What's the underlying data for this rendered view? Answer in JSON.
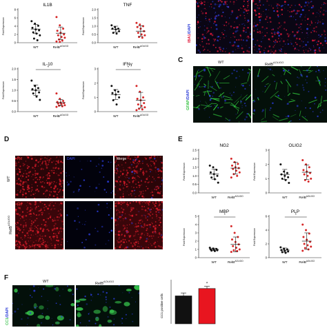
{
  "panels": {
    "c": "C",
    "d": "D",
    "e": "E",
    "f": "F"
  },
  "colors": {
    "wt": "#111111",
    "relb": "#d62728",
    "iba1": "#e0183a",
    "dapi": "#2b3bd6",
    "gfap": "#2fbf3a",
    "fm": "#d81c2a",
    "cc1": "#36c14a"
  },
  "groups": {
    "wt": "WT",
    "relb": "RelB",
    "relb_sup": "ΔOLIGO"
  },
  "ylabel_fold": "Fold Expression",
  "panel_a_stain": {
    "part1": "IBA1",
    "part2": "/DAPI"
  },
  "panel_c": {
    "wt": "WT",
    "relb": "RelB",
    "relb_sup": "ΔOLIGO",
    "stain1": "GFAP",
    "stain2": "/DAPI"
  },
  "panel_d": {
    "col1": "FM",
    "col2": "DAPI",
    "col3": "Merge",
    "row1": "WT",
    "row2": "RelB",
    "row2_sup": "ΔOLIGO"
  },
  "panel_f": {
    "wt": "WT",
    "relb": "RelB",
    "relb_sup": "ΔOLIGO",
    "stain1": "CC1",
    "stain2": "/DAPI",
    "ylabel": "CC1 positive cells",
    "star": "*"
  },
  "chart_data": [
    {
      "type": "scatter",
      "title": "IL1B",
      "ylim": [
        0,
        8
      ],
      "yticks": [
        0,
        2,
        4,
        6,
        8
      ],
      "wt": [
        5.2,
        4.6,
        4.1,
        3.6,
        3.2,
        3.0,
        2.5,
        2.2,
        1.8,
        1.0,
        0.6
      ],
      "relb": [
        6.2,
        4.2,
        3.4,
        2.9,
        2.4,
        2.0,
        1.8,
        1.4,
        1.2,
        0.8,
        0.5,
        0.3,
        0.2
      ],
      "wt_mean": 3.3,
      "wt_err": 1.1,
      "relb_mean": 2.3,
      "relb_err": 1.5,
      "sig": ""
    },
    {
      "type": "scatter",
      "title": "TNF",
      "ylim": [
        0,
        2
      ],
      "yticks": [
        0.0,
        0.5,
        1.0,
        1.5,
        2.0
      ],
      "wt": [
        1.05,
        0.95,
        0.85,
        0.85,
        0.8,
        0.7,
        0.6,
        0.55
      ],
      "relb": [
        1.2,
        1.1,
        1.0,
        0.95,
        0.85,
        0.7,
        0.6,
        0.5,
        0.45,
        0.35,
        0.3
      ],
      "wt_mean": 0.82,
      "wt_err": 0.18,
      "relb_mean": 0.7,
      "relb_err": 0.32,
      "sig": ""
    },
    {
      "type": "scatter",
      "title": "IL-10",
      "ylim": [
        0,
        2
      ],
      "yticks": [
        0.0,
        0.5,
        1.0,
        1.5,
        2.0
      ],
      "wt": [
        1.45,
        1.2,
        1.1,
        1.05,
        1.0,
        0.9,
        0.85,
        0.7,
        0.55
      ],
      "relb": [
        0.85,
        0.6,
        0.5,
        0.45,
        0.42,
        0.4,
        0.38,
        0.35,
        0.3,
        0.28,
        0.25,
        0.22
      ],
      "wt_mean": 1.0,
      "wt_err": 0.25,
      "relb_mean": 0.42,
      "relb_err": 0.15,
      "sig": "*"
    },
    {
      "type": "scatter",
      "title": "IFNγ",
      "ylim": [
        0,
        3
      ],
      "yticks": [
        0,
        1,
        2,
        3
      ],
      "wt": [
        1.8,
        1.5,
        1.4,
        1.3,
        1.2,
        1.0,
        0.8,
        0.5
      ],
      "relb": [
        1.8,
        1.4,
        1.0,
        0.9,
        0.8,
        0.6,
        0.5,
        0.4,
        0.3,
        0.2,
        0.15,
        0.1
      ],
      "wt_mean": 1.2,
      "wt_err": 0.35,
      "relb_mean": 0.8,
      "relb_err": 0.55,
      "sig": "*"
    },
    {
      "type": "scatter",
      "title": "NG2",
      "ylim": [
        0,
        2.5
      ],
      "yticks": [
        0.0,
        0.5,
        1.0,
        1.5,
        2.0,
        2.5
      ],
      "wt": [
        1.6,
        1.5,
        1.35,
        1.2,
        1.1,
        1.0,
        0.9,
        0.8,
        0.6
      ],
      "relb": [
        2.0,
        1.8,
        1.7,
        1.6,
        1.5,
        1.45,
        1.4,
        1.3,
        1.2,
        1.1,
        1.0,
        0.9
      ],
      "wt_mean": 1.1,
      "wt_err": 0.3,
      "relb_mean": 1.45,
      "relb_err": 0.35,
      "sig": ""
    },
    {
      "type": "scatter",
      "title": "OLIG2",
      "ylim": [
        0,
        3
      ],
      "yticks": [
        0,
        1,
        2,
        3
      ],
      "wt": [
        2.0,
        1.5,
        1.4,
        1.3,
        1.2,
        1.1,
        1.0,
        0.9,
        0.7
      ],
      "relb": [
        2.3,
        2.0,
        1.8,
        1.6,
        1.5,
        1.4,
        1.3,
        1.2,
        1.0,
        0.9,
        0.8
      ],
      "wt_mean": 1.3,
      "wt_err": 0.35,
      "relb_mean": 1.45,
      "relb_err": 0.5,
      "sig": ""
    },
    {
      "type": "scatter",
      "title": "MBP",
      "ylim": [
        0,
        5
      ],
      "yticks": [
        0,
        1,
        2,
        3,
        4,
        5
      ],
      "wt": [
        1.2,
        1.1,
        1.05,
        1.0,
        0.95,
        0.9,
        0.85,
        0.8
      ],
      "relb": [
        3.8,
        3.0,
        2.5,
        2.2,
        1.9,
        1.6,
        1.4,
        1.2,
        1.0,
        0.9,
        0.8,
        0.7
      ],
      "wt_mean": 1.0,
      "wt_err": 0.15,
      "relb_mean": 1.6,
      "relb_err": 0.9,
      "sig": "*"
    },
    {
      "type": "scatter",
      "title": "PLP",
      "ylim": [
        0,
        6
      ],
      "yticks": [
        0,
        2,
        4,
        6
      ],
      "wt": [
        1.5,
        1.3,
        1.2,
        1.1,
        1.0,
        0.9,
        0.8,
        0.7
      ],
      "relb": [
        4.8,
        4.0,
        3.5,
        3.0,
        2.6,
        2.3,
        2.0,
        1.8,
        1.6,
        1.4,
        1.2,
        1.0
      ],
      "wt_mean": 1.1,
      "wt_err": 0.3,
      "relb_mean": 2.4,
      "relb_err": 1.2,
      "sig": "*"
    },
    {
      "type": "bar",
      "title": "",
      "categories": [
        "WT",
        "RelB ΔOLIGO"
      ],
      "values": [
        38,
        48
      ],
      "errors": [
        4,
        3
      ],
      "ylim": [
        0,
        60
      ],
      "sig": "*"
    }
  ]
}
